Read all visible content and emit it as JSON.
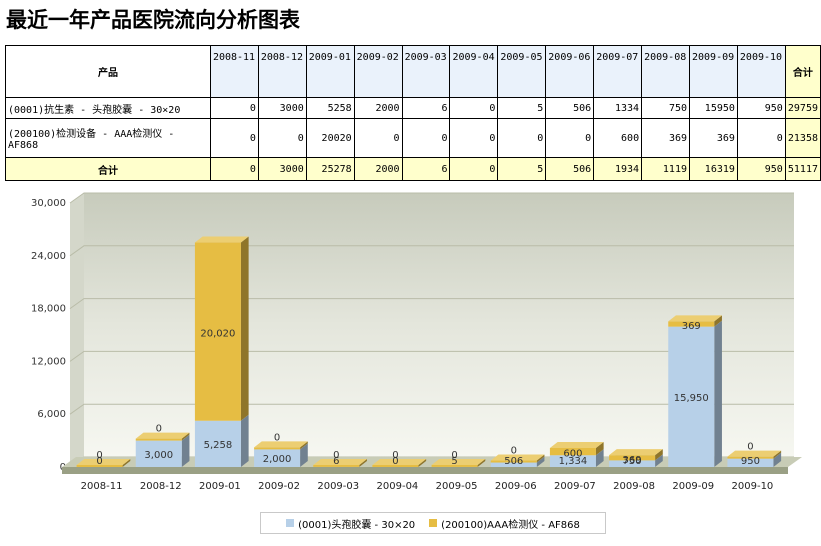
{
  "title": "最近一年产品医院流向分析图表",
  "table": {
    "product_header": "产品",
    "total_header": "合计",
    "months": [
      "2008-11",
      "2008-12",
      "2009-01",
      "2009-02",
      "2009-03",
      "2009-04",
      "2009-05",
      "2009-06",
      "2009-07",
      "2009-08",
      "2009-09",
      "2009-10"
    ],
    "rows": [
      {
        "name": "(0001)抗生素 - 头孢胶囊 - 30×20",
        "values": [
          "0",
          "3000",
          "5258",
          "2000",
          "6",
          "0",
          "5",
          "506",
          "1334",
          "750",
          "15950",
          "950"
        ],
        "total": "29759"
      },
      {
        "name": "(200100)检测设备 - AAA检测仪 - AF868",
        "values": [
          "0",
          "0",
          "20020",
          "0",
          "0",
          "0",
          "0",
          "0",
          "600",
          "369",
          "369",
          "0"
        ],
        "total": "21358"
      }
    ],
    "sum_row": {
      "name": "合计",
      "values": [
        "0",
        "3000",
        "25278",
        "2000",
        "6",
        "0",
        "5",
        "506",
        "1934",
        "1119",
        "16319",
        "950"
      ],
      "total": "51117"
    }
  },
  "chart_data": {
    "type": "bar",
    "stacked": true,
    "categories": [
      "2008-11",
      "2008-12",
      "2009-01",
      "2009-02",
      "2009-03",
      "2009-04",
      "2009-05",
      "2009-06",
      "2009-07",
      "2009-08",
      "2009-09",
      "2009-10"
    ],
    "series": [
      {
        "name": "(0001)头孢胶囊 - 30×20",
        "color": "#b7d0e8",
        "values": [
          0,
          3000,
          5258,
          2000,
          6,
          0,
          5,
          506,
          1334,
          750,
          15950,
          950
        ]
      },
      {
        "name": "(200100)AAA检测仪 - AF868",
        "color": "#e6bd43",
        "values": [
          0,
          0,
          20020,
          0,
          0,
          0,
          0,
          0,
          600,
          369,
          369,
          0
        ]
      }
    ],
    "ylim": [
      0,
      30000
    ],
    "yticks": [
      0,
      6000,
      12000,
      18000,
      24000,
      30000
    ],
    "ytick_labels": [
      "0",
      "6,000",
      "12,000",
      "18,000",
      "24,000",
      "30,000"
    ],
    "grid": true,
    "legend": "bottom"
  }
}
